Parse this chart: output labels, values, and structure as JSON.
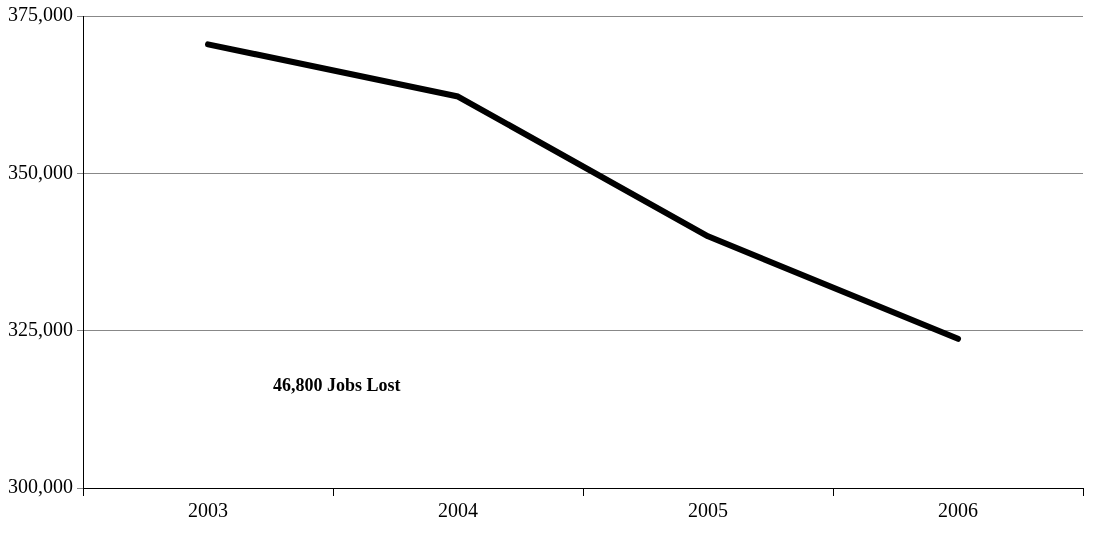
{
  "chart_data": {
    "type": "line",
    "categories": [
      "2003",
      "2004",
      "2005",
      "2006"
    ],
    "series": [
      {
        "color": "#000000",
        "values": [
          370500,
          362200,
          340000,
          323700
        ]
      }
    ],
    "ylim": [
      300000,
      375000
    ],
    "yticks": [
      {
        "value": 300000,
        "label": "300,000"
      },
      {
        "value": 325000,
        "label": "325,000"
      },
      {
        "value": 350000,
        "label": "350,000"
      },
      {
        "value": 375000,
        "label": "375,000"
      }
    ],
    "grid": "y",
    "legend": false,
    "marker": "none",
    "line_style": "solid",
    "annotations": [
      "46,800 Jobs Lost"
    ]
  }
}
